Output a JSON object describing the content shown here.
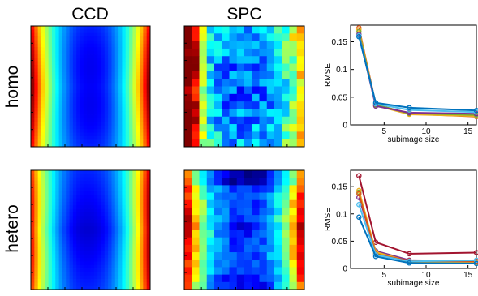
{
  "column_titles": {
    "ccd": "CCD",
    "spc": "SPC"
  },
  "row_labels": {
    "homo": "homo",
    "hetero": "hetero"
  },
  "chart_data": [
    {
      "type": "heatmap",
      "id": "homo-ccd",
      "title": "CCD",
      "row_label": "homo",
      "pattern": "smooth-hourglass",
      "colormap": "jet"
    },
    {
      "type": "heatmap",
      "id": "homo-spc",
      "title": "SPC",
      "row_label": "homo",
      "pattern": "blocky-noisy",
      "colormap": "jet"
    },
    {
      "type": "line",
      "id": "homo-rmse",
      "xlabel": "subimage size",
      "ylabel": "RMSE",
      "xlim": [
        1,
        16
      ],
      "ylim": [
        0,
        0.18
      ],
      "xticks": [
        "5",
        "10",
        "15"
      ],
      "yticks": [
        "0",
        "0.05",
        "0.1",
        "0.15"
      ],
      "x": [
        2,
        4,
        8,
        16
      ],
      "series": [
        {
          "color": "#d95319",
          "values": [
            0.175,
            0.037,
            0.02,
            0.015
          ]
        },
        {
          "color": "#edb120",
          "values": [
            0.172,
            0.035,
            0.019,
            0.016
          ]
        },
        {
          "color": "#77ac30",
          "values": [
            0.168,
            0.036,
            0.021,
            0.018
          ]
        },
        {
          "color": "#7e2f8e",
          "values": [
            0.163,
            0.034,
            0.022,
            0.02
          ]
        },
        {
          "color": "#4dbeee",
          "values": [
            0.161,
            0.038,
            0.027,
            0.023
          ]
        },
        {
          "color": "#0072bd",
          "values": [
            0.159,
            0.04,
            0.031,
            0.026
          ]
        }
      ]
    },
    {
      "type": "heatmap",
      "id": "hetero-ccd",
      "title": "CCD",
      "row_label": "hetero",
      "pattern": "smooth-hourglass-right-red",
      "colormap": "jet"
    },
    {
      "type": "heatmap",
      "id": "hetero-spc",
      "title": "SPC",
      "row_label": "hetero",
      "pattern": "blocky-hourglass",
      "colormap": "jet"
    },
    {
      "type": "line",
      "id": "hetero-rmse",
      "xlabel": "subimage size",
      "ylabel": "RMSE",
      "xlim": [
        1,
        16
      ],
      "ylim": [
        0,
        0.18
      ],
      "xticks": [
        "5",
        "10",
        "15"
      ],
      "yticks": [
        "0",
        "0.05",
        "0.1",
        "0.15"
      ],
      "x": [
        2,
        4,
        8,
        16
      ],
      "series": [
        {
          "color": "#a2142f",
          "values": [
            0.17,
            0.048,
            0.027,
            0.029
          ]
        },
        {
          "color": "#7e2f8e",
          "values": [
            0.13,
            0.032,
            0.015,
            0.014
          ]
        },
        {
          "color": "#77ac30",
          "values": [
            0.14,
            0.028,
            0.012,
            0.012
          ]
        },
        {
          "color": "#edb120",
          "values": [
            0.143,
            0.03,
            0.013,
            0.011
          ]
        },
        {
          "color": "#d95319",
          "values": [
            0.137,
            0.026,
            0.014,
            0.013
          ]
        },
        {
          "color": "#4dbeee",
          "values": [
            0.117,
            0.025,
            0.013,
            0.015
          ]
        },
        {
          "color": "#0072bd",
          "values": [
            0.094,
            0.022,
            0.01,
            0.009
          ]
        }
      ]
    }
  ]
}
